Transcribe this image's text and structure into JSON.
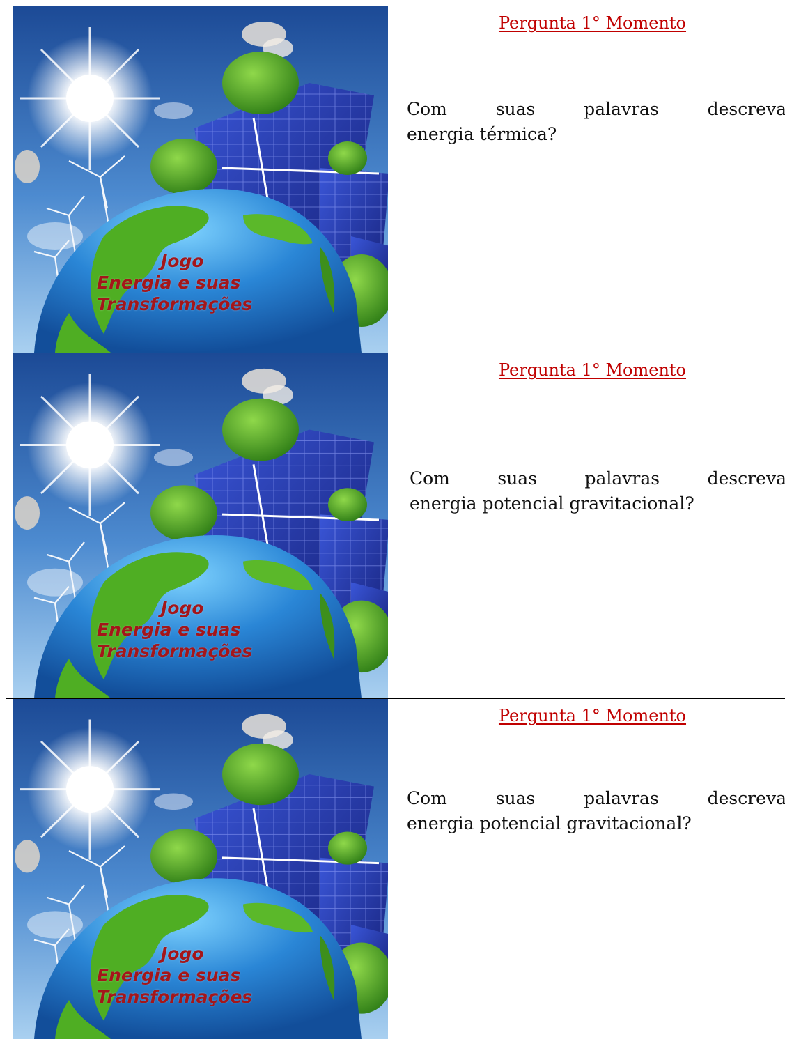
{
  "cards": [
    {
      "image": {
        "title_lines": [
          "Jogo",
          "Energia e suas",
          "Transformações"
        ],
        "scene": [
          "sun-icon",
          "solar-panel-icon",
          "tree-icon",
          "wind-turbine-icon",
          "globe-icon"
        ]
      },
      "heading": "Pergunta 1° Momento",
      "question_words": [
        "Com",
        "suas",
        "palavras",
        "descreva"
      ],
      "question_rest": "energia térmica?"
    },
    {
      "image": {
        "title_lines": [
          "Jogo",
          "Energia e suas",
          "Transformações"
        ],
        "scene": [
          "sun-icon",
          "solar-panel-icon",
          "tree-icon",
          "wind-turbine-icon",
          "globe-icon"
        ]
      },
      "heading": "Pergunta 1° Momento",
      "question_words": [
        "Com",
        "suas",
        "palavras",
        "descreva"
      ],
      "question_rest": "energia potencial gravitacional?"
    },
    {
      "image": {
        "title_lines": [
          "Jogo",
          "Energia e suas",
          "Transformações"
        ],
        "scene": [
          "sun-icon",
          "solar-panel-icon",
          "tree-icon",
          "wind-turbine-icon",
          "globe-icon"
        ]
      },
      "heading": "Pergunta 1° Momento",
      "question_words": [
        "Com",
        "suas",
        "palavras",
        "descreva"
      ],
      "question_rest": "energia potencial gravitacional?"
    }
  ],
  "colors": {
    "heading": "#c00000",
    "title": "#a4161a",
    "sky_top": "#1e4f9c",
    "sky_bottom": "#9ec9ee",
    "ocean": "#1f74c9",
    "land": "#4aa81f",
    "panel": "#1b2f8f"
  }
}
